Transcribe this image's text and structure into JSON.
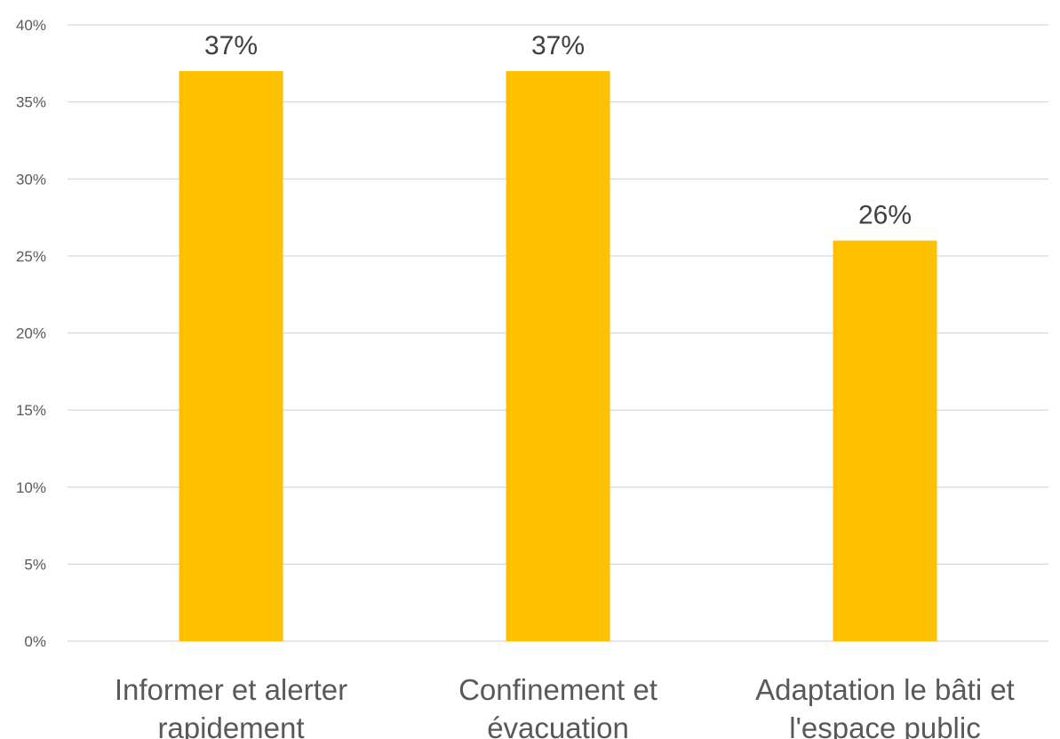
{
  "chart_data": {
    "type": "bar",
    "title": "",
    "xlabel": "",
    "ylabel": "",
    "categories": [
      [
        "Informer et alerter",
        "rapidement"
      ],
      [
        "Confinement et",
        "évacuation"
      ],
      [
        "Adaptation le bâti et",
        "l'espace public"
      ]
    ],
    "values": [
      37,
      37,
      26
    ],
    "data_labels": [
      "37%",
      "37%",
      "26%"
    ],
    "ylim": [
      0,
      40
    ],
    "y_ticks": [
      0,
      5,
      10,
      15,
      20,
      25,
      30,
      35,
      40
    ],
    "y_tick_labels": [
      "0%",
      "5%",
      "10%",
      "15%",
      "20%",
      "25%",
      "30%",
      "35%",
      "40%"
    ],
    "grid": true,
    "legend": "none",
    "bar_color": "#FFC000",
    "gridline_color": "#D9D9D9"
  }
}
